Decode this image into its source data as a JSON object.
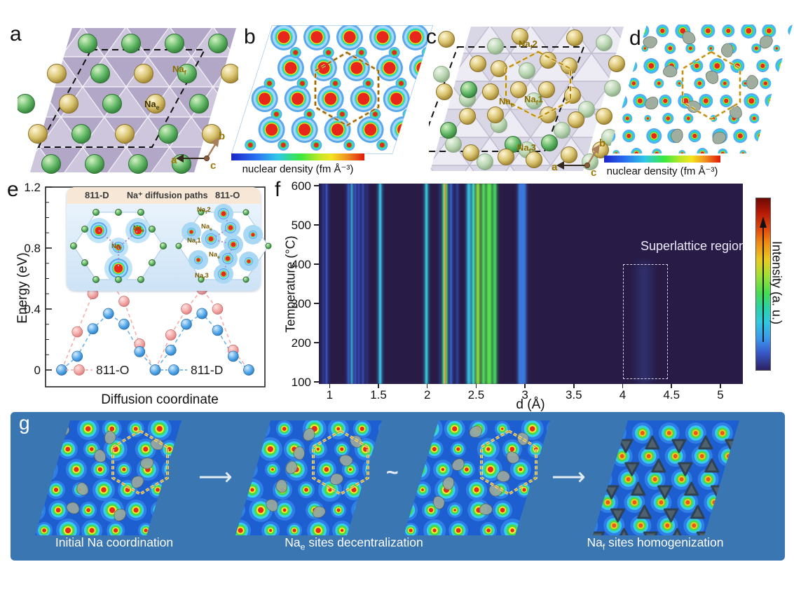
{
  "panel_a": {
    "label": "a",
    "site_naf": {
      "pre": "Na",
      "sub": "f",
      "post": ""
    },
    "site_nae": {
      "pre": "Na",
      "sub": "e",
      "post": ""
    },
    "axis": {
      "a": "a",
      "b": "b",
      "c": "c"
    }
  },
  "panel_b": {
    "label": "b",
    "colorbar_label": "nuclear density (fm Å⁻³)"
  },
  "panel_c": {
    "label": "c",
    "site_naf2": {
      "pre": "Na",
      "sub": "f",
      "post": "2"
    },
    "site_nae": {
      "pre": "Na",
      "sub": "e",
      "post": ""
    },
    "site_naf1": {
      "pre": "Na",
      "sub": "f",
      "post": "1"
    },
    "site_naf3": {
      "pre": "Na",
      "sub": "f",
      "post": "3"
    },
    "axis": {
      "a": "a",
      "b": "b",
      "c": "c"
    }
  },
  "panel_d": {
    "label": "d",
    "colorbar_label": "nuclear density (fm Å⁻³)"
  },
  "panel_e": {
    "label": "e",
    "inset": {
      "left_title": "811-D",
      "center_title": "Na⁺ diffusion paths",
      "right_title": "811-O",
      "left_site_nae": {
        "pre": "Na",
        "sub": "e",
        "post": ""
      },
      "left_site_naf": {
        "pre": "Na",
        "sub": "f",
        "post": ""
      },
      "right_site_naf2": {
        "pre": "Na",
        "sub": "f",
        "post": "2"
      },
      "right_site_nae_top": {
        "pre": "Na",
        "sub": "e",
        "post": ""
      },
      "right_site_naf1": {
        "pre": "Na",
        "sub": "f",
        "post": "1"
      },
      "right_site_nae_bottom": {
        "pre": "Na",
        "sub": "e",
        "post": ""
      },
      "right_site_naf3": {
        "pre": "Na",
        "sub": "f",
        "post": "3"
      }
    }
  },
  "panel_f": {
    "label": "f",
    "annotation": "Superlattice region",
    "colorbar_label": "Intensity (a. u.)"
  },
  "panel_g": {
    "label": "g",
    "captions": [
      {
        "pre": "Initial Na coordination",
        "sub": "",
        "post": ""
      },
      {
        "pre": "Na",
        "sub": "e",
        "post": " sites decentralization"
      },
      {
        "pre": "Na",
        "sub": "f",
        "post": " sites homogenization"
      }
    ],
    "connectors": [
      "⟶",
      "~",
      "⟶"
    ]
  },
  "colors": {
    "banner_blue": "#3a76b2",
    "map_blue": "#1d5fd0",
    "heatmap_bg": "#281b45",
    "hexagon_dash": "#b8860b",
    "green_sphere": "#66bb6a",
    "gold_sphere": "#d9c470"
  },
  "chart_data": [
    {
      "id": "energy-profile",
      "type": "line",
      "xlabel": "Diffusion coordinate",
      "ylabel": "Energy (eV)",
      "ylim": [
        -0.08,
        1.25
      ],
      "yticks": [
        0,
        0.4,
        0.8,
        1.2
      ],
      "x": [
        0,
        0.083,
        0.167,
        0.25,
        0.333,
        0.417,
        0.5,
        0.583,
        0.667,
        0.75,
        0.833,
        0.917,
        1
      ],
      "series": [
        {
          "name": "811-O",
          "color": "#f2a09e",
          "values": [
            0,
            0.25,
            0.5,
            0.6,
            0.45,
            0.17,
            0,
            0.23,
            0.4,
            0.53,
            0.4,
            0.13,
            0
          ]
        },
        {
          "name": "811-D",
          "color": "#4da6e8",
          "values": [
            0,
            0.09,
            0.27,
            0.37,
            0.3,
            0.12,
            0,
            0.13,
            0.3,
            0.37,
            0.26,
            0.09,
            0
          ]
        }
      ],
      "legend_position": "bottom-inline",
      "grid": false
    },
    {
      "id": "neutron-thermodiffraction",
      "type": "heatmap",
      "xlabel": "d (Å)",
      "ylabel": "Temperature (°C)",
      "xlim": [
        0.89,
        5.23
      ],
      "ylim": [
        100,
        600
      ],
      "xticks": [
        1,
        1.5,
        2,
        2.5,
        3,
        3.5,
        4,
        4.5,
        5
      ],
      "yticks": [
        100,
        200,
        300,
        400,
        500,
        600
      ],
      "annotation": "Superlattice region",
      "superlattice_box": {
        "d_min": 4.0,
        "d_max": 4.45,
        "t_min": 110,
        "t_max": 400
      },
      "colorbar_label": "Intensity (a. u.)",
      "background": "#281b45",
      "peaks": [
        {
          "d": 0.93,
          "w": 2,
          "color": "#2e3f9a",
          "alpha": 0.85
        },
        {
          "d": 0.97,
          "w": 2,
          "color": "#3a55cc",
          "alpha": 1
        },
        {
          "d": 1.19,
          "w": 2,
          "color": "#3a55cc",
          "alpha": 1
        },
        {
          "d": 1.225,
          "w": 2,
          "color": "#38b8e6",
          "alpha": 1
        },
        {
          "d": 1.265,
          "w": 2,
          "color": "#3a55cc",
          "alpha": 1
        },
        {
          "d": 1.3,
          "w": 2,
          "color": "#334cbe",
          "alpha": 1
        },
        {
          "d": 1.345,
          "w": 2,
          "color": "#3a55cc",
          "alpha": 0.95
        },
        {
          "d": 1.385,
          "w": 2,
          "color": "#2c3a86",
          "alpha": 0.8
        },
        {
          "d": 1.52,
          "w": 3,
          "color": "#38c6e8",
          "alpha": 1
        },
        {
          "d": 1.99,
          "w": 3,
          "color": "#36c8dd",
          "alpha": 1
        },
        {
          "d": 2.13,
          "w": 2,
          "color": "#2c3f96",
          "alpha": 0.7
        },
        {
          "d": 2.18,
          "w": 12,
          "color": "hot",
          "alpha": 1
        },
        {
          "d": 2.24,
          "w": 3,
          "color": "#3a66d8",
          "alpha": 0.9
        },
        {
          "d": 2.31,
          "w": 3,
          "color": "#2e48a8",
          "alpha": 0.8
        },
        {
          "d": 2.425,
          "w": 4,
          "color": "#38c2e8",
          "alpha": 1
        },
        {
          "d": 2.475,
          "w": 3,
          "color": "#3ad8c8",
          "alpha": 1
        },
        {
          "d": 2.52,
          "w": 4,
          "color": "#8ae03c",
          "alpha": 1
        },
        {
          "d": 2.575,
          "w": 4,
          "color": "#52de5c",
          "alpha": 1
        },
        {
          "d": 2.63,
          "w": 6,
          "color": "#58e24e",
          "alpha": 1
        },
        {
          "d": 2.69,
          "w": 4,
          "color": "#46d860",
          "alpha": 1
        },
        {
          "d": 2.97,
          "w": 10,
          "color": "#3e7ee4",
          "alpha": 0.95
        },
        {
          "d": 4.22,
          "w": 18,
          "color": "#3a4a9e",
          "alpha": 0.45,
          "partial": true
        }
      ]
    }
  ]
}
